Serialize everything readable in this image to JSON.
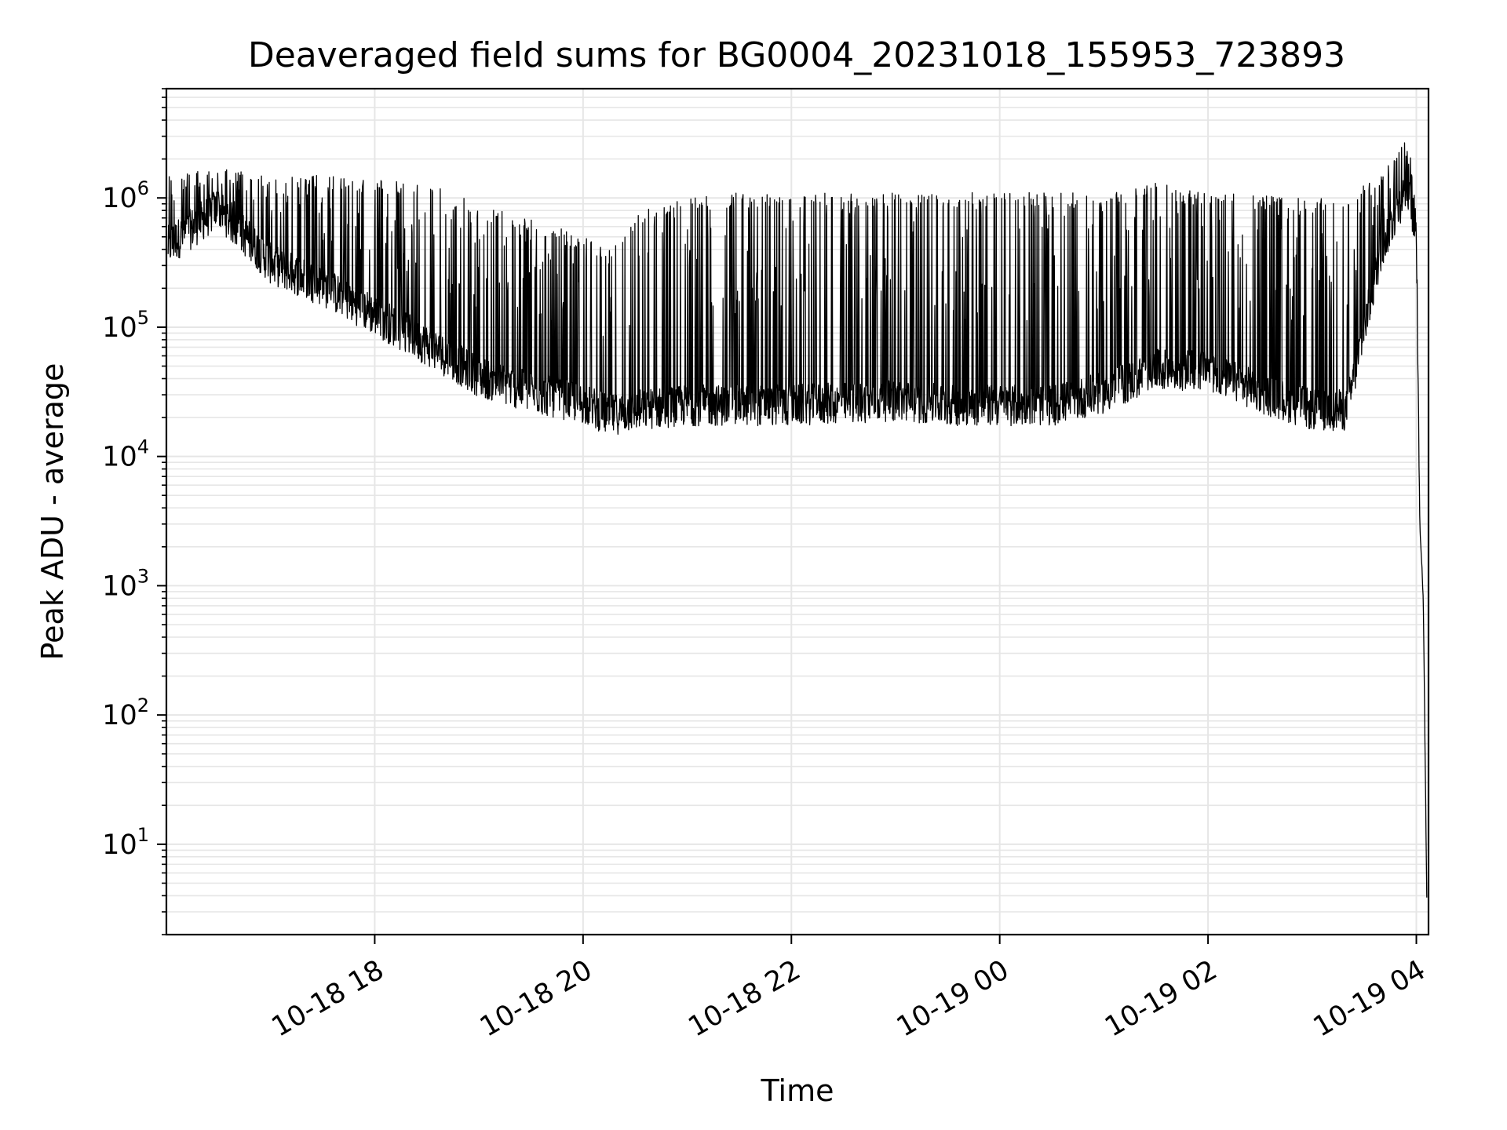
{
  "chart_data": {
    "type": "line",
    "title": "Deaveraged field sums for BG0004_20231018_155953_723893",
    "xlabel": "Time",
    "ylabel": "Peak ADU - average",
    "x_axis": {
      "kind": "datetime",
      "xlim": [
        "2023-10-18 16:00",
        "2023-10-19 04:07"
      ],
      "ticks": [
        "2023-10-18 18:00",
        "2023-10-18 20:00",
        "2023-10-18 22:00",
        "2023-10-19 00:00",
        "2023-10-19 02:00",
        "2023-10-19 04:00"
      ],
      "tick_labels": [
        "10-18 18",
        "10-18 20",
        "10-18 22",
        "10-19 00",
        "10-19 02",
        "10-19 04"
      ]
    },
    "y_axis": {
      "scale": "log",
      "ylim": [
        2,
        7000000
      ],
      "ticks": [
        10,
        100,
        1000,
        10000,
        100000,
        1000000
      ],
      "tick_base": "10",
      "tick_exponents": [
        "1",
        "2",
        "3",
        "4",
        "5",
        "6"
      ]
    },
    "grid": true,
    "line_color": "#000000",
    "grid_color": "#e6e6e6",
    "series": [
      {
        "x": [
          "2023-10-18 16:00",
          "2023-10-18 16:30",
          "2023-10-18 17:00",
          "2023-10-18 17:30",
          "2023-10-18 18:00",
          "2023-10-18 18:30",
          "2023-10-18 19:00",
          "2023-10-18 19:30",
          "2023-10-18 20:00",
          "2023-10-18 20:15",
          "2023-10-18 20:30",
          "2023-10-18 21:00",
          "2023-10-18 21:30",
          "2023-10-18 22:00",
          "2023-10-18 22:30",
          "2023-10-18 23:00",
          "2023-10-18 23:30",
          "2023-10-19 00:00",
          "2023-10-19 00:30",
          "2023-10-19 01:00",
          "2023-10-19 01:30",
          "2023-10-19 02:00",
          "2023-10-19 02:30",
          "2023-10-19 03:00",
          "2023-10-19 03:20",
          "2023-10-19 03:40",
          "2023-10-19 03:55",
          "2023-10-19 04:00",
          "2023-10-19 04:02",
          "2023-10-19 04:04",
          "2023-10-19 04:06"
        ],
        "baseline": [
          400000,
          800000,
          300000,
          200000,
          120000,
          70000,
          40000,
          30000,
          25000,
          20000,
          22000,
          24000,
          24000,
          24000,
          25000,
          26000,
          24000,
          24000,
          24000,
          30000,
          45000,
          45000,
          30000,
          22000,
          22000,
          400000,
          1200000,
          500000,
          3000,
          800,
          4
        ],
        "peak": [
          1600000,
          1700000,
          1500000,
          1500000,
          1400000,
          1300000,
          900000,
          700000,
          500000,
          400000,
          800000,
          1000000,
          1100000,
          1100000,
          1100000,
          1100000,
          1100000,
          1100000,
          1100000,
          1100000,
          1300000,
          1100000,
          1100000,
          1000000,
          1100000,
          1500000,
          3000000,
          1000000,
          3000,
          800,
          4
        ]
      }
    ]
  }
}
